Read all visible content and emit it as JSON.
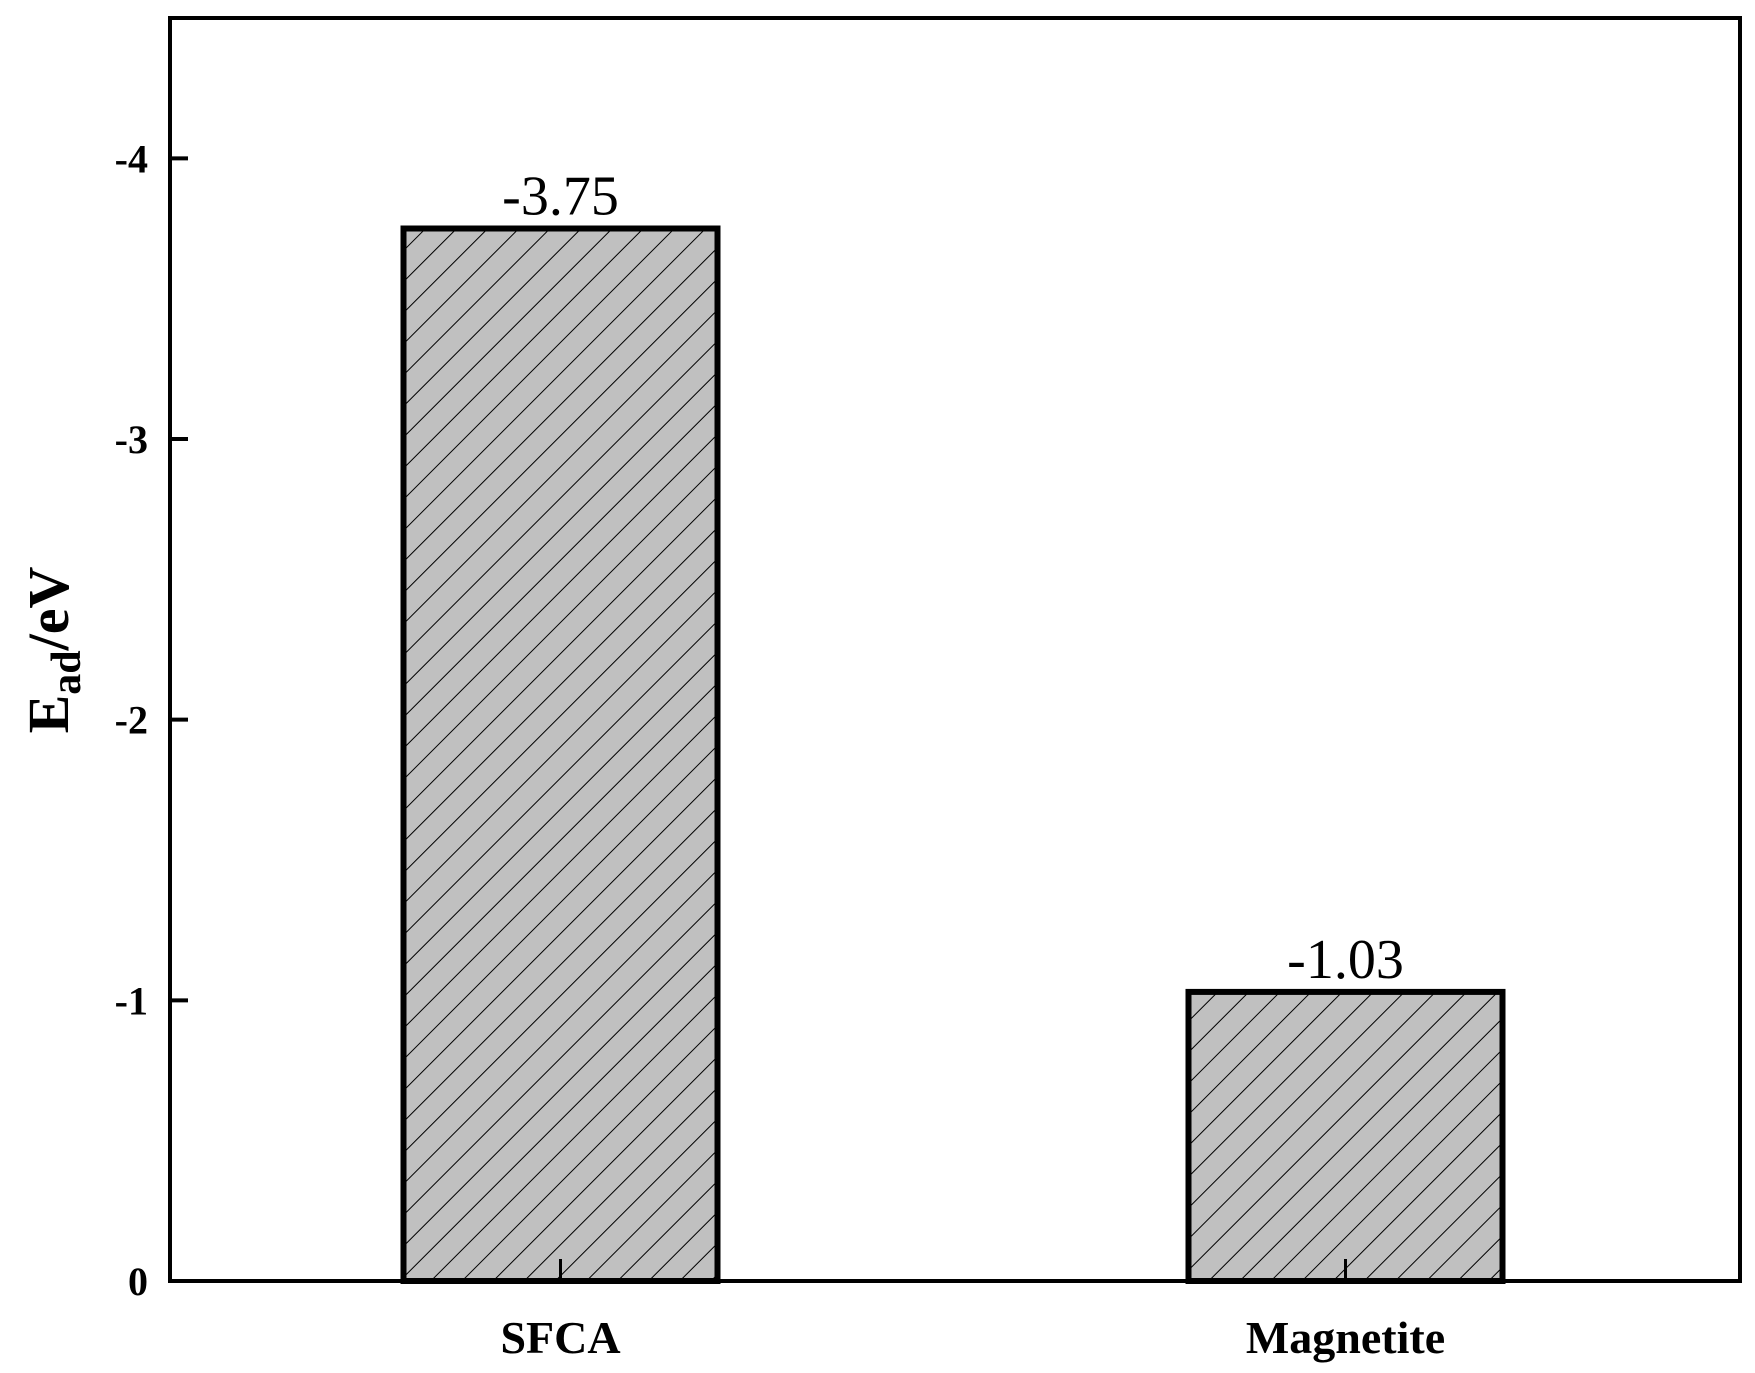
{
  "chart_data": {
    "type": "bar",
    "categories": [
      "SFCA",
      "Magnetite"
    ],
    "values": [
      -3.75,
      -1.03
    ],
    "data_labels": [
      "-3.75",
      "-1.03"
    ],
    "ylabel_main": "E",
    "ylabel_sub": "ad",
    "ylabel_unit": "/eV",
    "xlabel": "",
    "ylim": [
      0,
      -4.5
    ],
    "y_axis_inverted": true,
    "yticks": [
      0,
      -1,
      -2,
      -3,
      -4
    ],
    "ytick_labels": [
      "0",
      "-1",
      "-2",
      "-3",
      "-4"
    ],
    "grid": false,
    "legend": false,
    "bar_fill": "#c0c0c0",
    "bar_hatch": "diagonal-backslash",
    "bar_stroke": "#000000"
  }
}
